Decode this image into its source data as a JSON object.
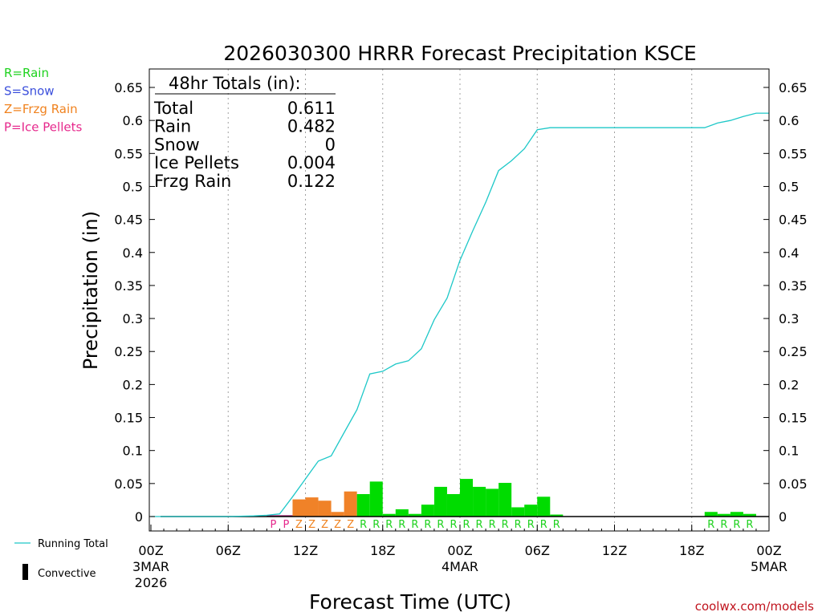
{
  "chart_data": {
    "type": "bar",
    "title": "2026030300 HRRR Forecast Precipitation KSCE",
    "xlabel": "Forecast Time (UTC)",
    "ylabel": "Precipitation (in)",
    "ylim": [
      0,
      0.65
    ],
    "yticks": [
      "0",
      "0.05",
      "0.1",
      "0.15",
      "0.2",
      "0.25",
      "0.3",
      "0.35",
      "0.4",
      "0.45",
      "0.5",
      "0.55",
      "0.6",
      "0.65"
    ],
    "xlim_hours": [
      0,
      48
    ],
    "xticks": [
      {
        "hour": 0,
        "label": "00Z",
        "sub1": "3MAR",
        "sub2": "2026"
      },
      {
        "hour": 6,
        "label": "06Z",
        "sub1": "",
        "sub2": ""
      },
      {
        "hour": 12,
        "label": "12Z",
        "sub1": "",
        "sub2": ""
      },
      {
        "hour": 18,
        "label": "18Z",
        "sub1": "",
        "sub2": ""
      },
      {
        "hour": 24,
        "label": "00Z",
        "sub1": "4MAR",
        "sub2": ""
      },
      {
        "hour": 30,
        "label": "06Z",
        "sub1": "",
        "sub2": ""
      },
      {
        "hour": 36,
        "label": "12Z",
        "sub1": "",
        "sub2": ""
      },
      {
        "hour": 42,
        "label": "18Z",
        "sub1": "",
        "sub2": ""
      },
      {
        "hour": 48,
        "label": "00Z",
        "sub1": "5MAR",
        "sub2": ""
      }
    ],
    "hourly_precip": [
      {
        "hour": 10,
        "value": 0.002,
        "type": "P"
      },
      {
        "hour": 11,
        "value": 0.002,
        "type": "P"
      },
      {
        "hour": 12,
        "value": 0.026,
        "type": "Z"
      },
      {
        "hour": 13,
        "value": 0.029,
        "type": "Z"
      },
      {
        "hour": 14,
        "value": 0.024,
        "type": "Z"
      },
      {
        "hour": 15,
        "value": 0.007,
        "type": "Z"
      },
      {
        "hour": 16,
        "value": 0.038,
        "type": "Z"
      },
      {
        "hour": 17,
        "value": 0.034,
        "type": "R"
      },
      {
        "hour": 18,
        "value": 0.053,
        "type": "R"
      },
      {
        "hour": 19,
        "value": 0.004,
        "type": "R"
      },
      {
        "hour": 20,
        "value": 0.011,
        "type": "R"
      },
      {
        "hour": 21,
        "value": 0.004,
        "type": "R"
      },
      {
        "hour": 22,
        "value": 0.018,
        "type": "R"
      },
      {
        "hour": 23,
        "value": 0.045,
        "type": "R"
      },
      {
        "hour": 24,
        "value": 0.034,
        "type": "R"
      },
      {
        "hour": 25,
        "value": 0.057,
        "type": "R"
      },
      {
        "hour": 26,
        "value": 0.045,
        "type": "R"
      },
      {
        "hour": 27,
        "value": 0.042,
        "type": "R"
      },
      {
        "hour": 28,
        "value": 0.051,
        "type": "R"
      },
      {
        "hour": 29,
        "value": 0.014,
        "type": "R"
      },
      {
        "hour": 30,
        "value": 0.018,
        "type": "R"
      },
      {
        "hour": 31,
        "value": 0.03,
        "type": "R"
      },
      {
        "hour": 32,
        "value": 0.003,
        "type": "R"
      },
      {
        "hour": 44,
        "value": 0.007,
        "type": "R"
      },
      {
        "hour": 45,
        "value": 0.004,
        "type": "R"
      },
      {
        "hour": 46,
        "value": 0.007,
        "type": "R"
      },
      {
        "hour": 47,
        "value": 0.004,
        "type": "R"
      }
    ],
    "running_total": [
      [
        0,
        0
      ],
      [
        6,
        0.0
      ],
      [
        8,
        0.001
      ],
      [
        9,
        0.002
      ],
      [
        10,
        0.004
      ],
      [
        11,
        0.03
      ],
      [
        12,
        0.057
      ],
      [
        13,
        0.084
      ],
      [
        14,
        0.092
      ],
      [
        15,
        0.127
      ],
      [
        16,
        0.162
      ],
      [
        17,
        0.216
      ],
      [
        18,
        0.22
      ],
      [
        19,
        0.231
      ],
      [
        20,
        0.236
      ],
      [
        21,
        0.254
      ],
      [
        22,
        0.298
      ],
      [
        23,
        0.331
      ],
      [
        24,
        0.388
      ],
      [
        25,
        0.433
      ],
      [
        26,
        0.476
      ],
      [
        27,
        0.524
      ],
      [
        28,
        0.539
      ],
      [
        29,
        0.557
      ],
      [
        30,
        0.586
      ],
      [
        31,
        0.589
      ],
      [
        32,
        0.589
      ],
      [
        38,
        0.589
      ],
      [
        43,
        0.589
      ],
      [
        44,
        0.596
      ],
      [
        45,
        0.6
      ],
      [
        46,
        0.606
      ],
      [
        47,
        0.611
      ],
      [
        48,
        0.611
      ]
    ],
    "totals_box": {
      "header": "48hr Totals (in):",
      "rows": [
        {
          "label": "Total",
          "value": "0.611"
        },
        {
          "label": "Rain",
          "value": "0.482"
        },
        {
          "label": "Snow",
          "value": "0"
        },
        {
          "label": "Ice Pellets",
          "value": "0.004"
        },
        {
          "label": "Frzg Rain",
          "value": "0.122"
        }
      ]
    },
    "type_legend": [
      {
        "code": "R",
        "text": "R=Rain",
        "color": "#1ed21e"
      },
      {
        "code": "S",
        "text": "S=Snow",
        "color": "#3c50dc"
      },
      {
        "code": "Z",
        "text": "Z=Frzg Rain",
        "color": "#f0821e"
      },
      {
        "code": "P",
        "text": "P=Ice Pellets",
        "color": "#e6288c"
      }
    ],
    "bottom_legend": {
      "running_total": "Running Total",
      "convective": "Convective"
    },
    "colors": {
      "R": "#00dc00",
      "S": "#3c50dc",
      "Z": "#f08228",
      "P": "#a01e6e",
      "running_total": "#1ec8c8",
      "grid": "#a0a0a0"
    },
    "credit": "coolwx.com/models"
  }
}
